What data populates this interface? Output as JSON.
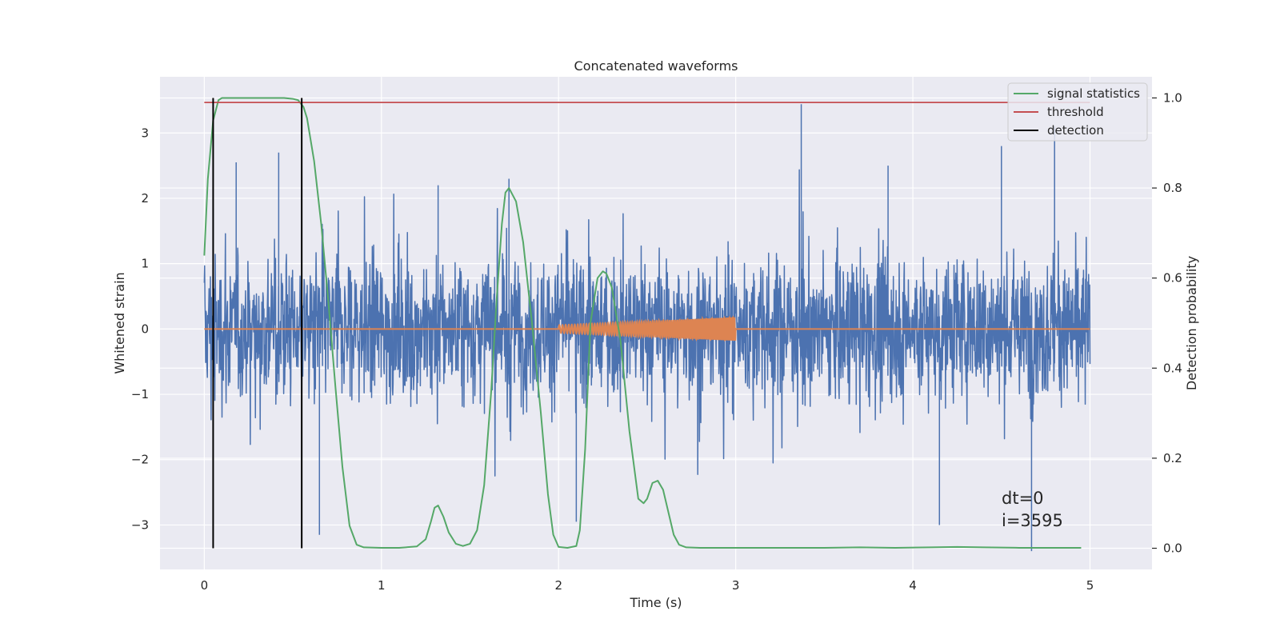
{
  "chart_data": {
    "type": "line",
    "title": "Concatenated waveforms",
    "xlabel": "Time (s)",
    "ylabel": "Whitened strain",
    "y2label": "Detection probability",
    "xlim": [
      -0.25,
      5.35
    ],
    "ylim": [
      -3.68,
      3.86
    ],
    "y2lim": [
      -0.047,
      1.047
    ],
    "xticks": [
      0,
      1,
      2,
      3,
      4,
      5
    ],
    "yticks": [
      -3,
      -2,
      -1,
      0,
      1,
      2,
      3
    ],
    "ytick_labels": [
      "−3",
      "−2",
      "−1",
      "0",
      "1",
      "2",
      "3"
    ],
    "y2ticks": [
      0.0,
      0.2,
      0.4,
      0.6,
      0.8,
      1.0
    ],
    "y2tick_labels": [
      "0.0",
      "0.2",
      "0.4",
      "0.6",
      "0.8",
      "1.0"
    ],
    "grid": true,
    "legend_position": "top-right",
    "series": [
      {
        "name": "",
        "kind": "noise",
        "axis": "left",
        "color": "#4c72b0",
        "x_range": [
          0,
          5
        ],
        "typical_amplitude": [
          -1.5,
          2.0
        ],
        "peaks": [
          [
            0.05,
            1.85
          ],
          [
            0.18,
            2.55
          ],
          [
            0.42,
            2.7
          ],
          [
            1.32,
            2.2
          ],
          [
            1.72,
            2.3
          ],
          [
            3.37,
            3.44
          ],
          [
            3.86,
            2.5
          ],
          [
            4.5,
            2.8
          ],
          [
            4.8,
            3.1
          ],
          [
            4.67,
            -3.4
          ],
          [
            0.65,
            -3.15
          ],
          [
            2.1,
            -2.95
          ],
          [
            4.15,
            -3.0
          ]
        ]
      },
      {
        "name": "",
        "kind": "chirp",
        "axis": "left",
        "color": "#dd8452",
        "x_range": [
          0,
          5
        ],
        "chirp_range": [
          2.0,
          3.0
        ],
        "amplitude_range": [
          0.06,
          0.18
        ]
      },
      {
        "name": "signal statistics",
        "kind": "line",
        "axis": "right",
        "color": "#55a868",
        "x": [
          0.0,
          0.02,
          0.05,
          0.08,
          0.1,
          0.15,
          0.3,
          0.45,
          0.5,
          0.53,
          0.56,
          0.58,
          0.62,
          0.66,
          0.7,
          0.74,
          0.78,
          0.82,
          0.86,
          0.9,
          1.0,
          1.1,
          1.2,
          1.25,
          1.28,
          1.3,
          1.32,
          1.35,
          1.38,
          1.42,
          1.46,
          1.5,
          1.54,
          1.58,
          1.62,
          1.65,
          1.68,
          1.7,
          1.72,
          1.76,
          1.8,
          1.85,
          1.9,
          1.94,
          1.97,
          2.0,
          2.05,
          2.1,
          2.12,
          2.15,
          2.18,
          2.22,
          2.25,
          2.27,
          2.3,
          2.35,
          2.4,
          2.45,
          2.48,
          2.5,
          2.53,
          2.56,
          2.59,
          2.62,
          2.65,
          2.68,
          2.72,
          2.8,
          3.0,
          3.5,
          3.7,
          3.9,
          4.1,
          4.25,
          4.4,
          4.6,
          4.8,
          4.95
        ],
        "y": [
          0.65,
          0.82,
          0.95,
          0.995,
          1.0,
          1.0,
          1.0,
          1.0,
          0.998,
          0.995,
          0.98,
          0.955,
          0.86,
          0.72,
          0.55,
          0.36,
          0.18,
          0.05,
          0.008,
          0.002,
          0.001,
          0.001,
          0.004,
          0.02,
          0.06,
          0.09,
          0.095,
          0.07,
          0.035,
          0.01,
          0.005,
          0.01,
          0.04,
          0.14,
          0.35,
          0.55,
          0.72,
          0.79,
          0.8,
          0.77,
          0.68,
          0.5,
          0.3,
          0.12,
          0.03,
          0.003,
          0.001,
          0.005,
          0.04,
          0.22,
          0.5,
          0.6,
          0.615,
          0.61,
          0.58,
          0.46,
          0.26,
          0.11,
          0.1,
          0.11,
          0.145,
          0.15,
          0.13,
          0.08,
          0.03,
          0.008,
          0.002,
          0.001,
          0.001,
          0.001,
          0.002,
          0.001,
          0.002,
          0.003,
          0.002,
          0.001,
          0.001,
          0.001
        ]
      },
      {
        "name": "threshold",
        "kind": "hline",
        "axis": "right",
        "color": "#c44e52",
        "x_range": [
          0,
          5
        ],
        "y": 0.99
      },
      {
        "name": "detection",
        "kind": "vlines",
        "axis": "right",
        "color": "#000000",
        "x": [
          0.05,
          0.55
        ],
        "y_range": [
          0.0,
          1.0
        ]
      }
    ],
    "annotations": [
      "dt=0",
      "i=3595"
    ]
  }
}
